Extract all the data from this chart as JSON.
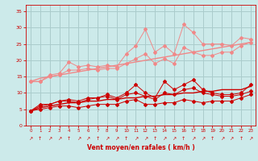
{
  "x": [
    0,
    1,
    2,
    3,
    4,
    5,
    6,
    7,
    8,
    9,
    10,
    11,
    12,
    13,
    14,
    15,
    16,
    17,
    18,
    19,
    20,
    21,
    22,
    23
  ],
  "line1": [
    13.5,
    13.5,
    15.5,
    16.0,
    19.5,
    18.0,
    18.5,
    18.0,
    18.5,
    18.0,
    22.0,
    24.5,
    29.5,
    22.5,
    24.5,
    22.0,
    31.0,
    28.5,
    25.0,
    25.0,
    25.0,
    24.5,
    27.0,
    26.5
  ],
  "line2": [
    13.5,
    13.5,
    15.0,
    15.5,
    17.0,
    17.0,
    17.5,
    17.0,
    17.5,
    17.5,
    19.0,
    20.5,
    22.0,
    19.0,
    20.5,
    19.0,
    24.0,
    22.5,
    21.5,
    21.5,
    22.5,
    22.5,
    24.5,
    25.5
  ],
  "line3_trend": [
    13.5,
    14.5,
    15.0,
    15.5,
    16.0,
    16.5,
    17.0,
    17.5,
    18.0,
    18.5,
    19.0,
    19.5,
    20.0,
    20.5,
    21.0,
    21.5,
    22.0,
    22.5,
    23.0,
    23.5,
    24.0,
    24.5,
    25.0,
    25.5
  ],
  "line4": [
    4.5,
    6.5,
    6.5,
    7.5,
    8.0,
    7.5,
    8.5,
    8.5,
    9.5,
    8.5,
    10.0,
    12.5,
    10.0,
    8.5,
    13.5,
    11.0,
    12.5,
    14.0,
    11.0,
    10.0,
    9.5,
    9.5,
    10.0,
    12.5
  ],
  "line5": [
    4.5,
    6.0,
    6.5,
    7.5,
    7.5,
    7.0,
    8.0,
    8.5,
    9.0,
    8.0,
    9.5,
    10.0,
    9.0,
    8.0,
    10.0,
    9.5,
    11.0,
    11.5,
    10.0,
    9.5,
    9.0,
    9.0,
    9.5,
    10.5
  ],
  "line6_trend": [
    4.5,
    5.5,
    6.0,
    6.5,
    7.0,
    7.0,
    7.5,
    7.5,
    8.0,
    8.0,
    8.5,
    8.5,
    9.0,
    9.0,
    9.5,
    9.5,
    10.0,
    10.0,
    10.5,
    10.5,
    11.0,
    11.0,
    11.0,
    12.0
  ],
  "line7_low": [
    4.5,
    5.0,
    5.5,
    6.0,
    6.0,
    5.5,
    6.0,
    6.5,
    6.5,
    6.5,
    7.5,
    8.0,
    6.5,
    6.5,
    7.0,
    7.0,
    8.0,
    7.5,
    7.0,
    7.5,
    7.5,
    7.5,
    8.5,
    9.5
  ],
  "bg_color": "#cceaea",
  "grid_color": "#aacccc",
  "color_light": "#f08888",
  "color_dark": "#cc0000",
  "xlabel": "Vent moyen/en rafales ( km/h )",
  "ylabel_ticks": [
    0,
    5,
    10,
    15,
    20,
    25,
    30,
    35
  ],
  "xlim": [
    -0.5,
    23.5
  ],
  "ylim": [
    0,
    37
  ]
}
